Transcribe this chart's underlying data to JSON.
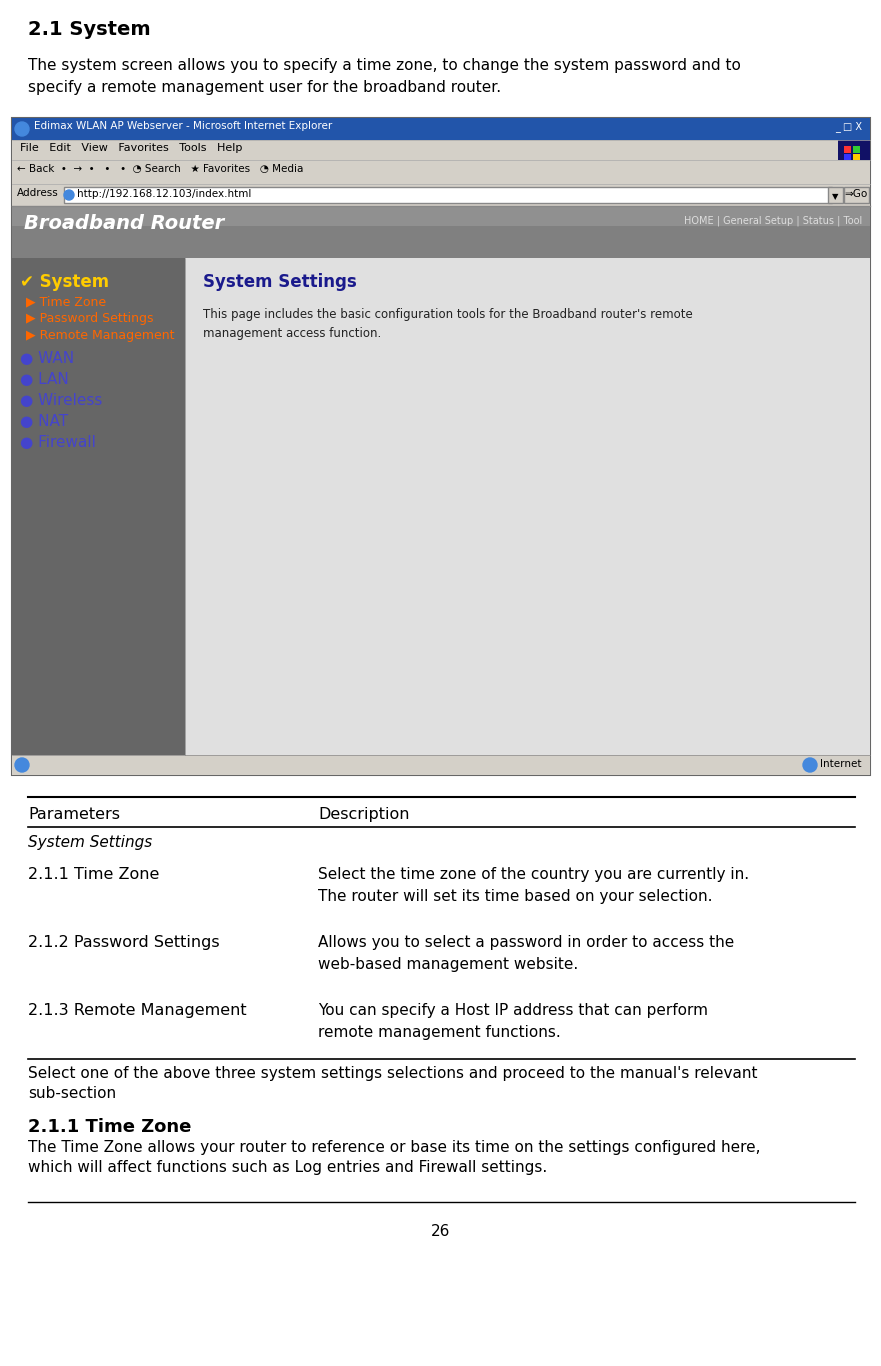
{
  "title": "2.1 System",
  "intro_text": "The system screen allows you to specify a time zone, to change the system password and to\nspecify a remote management user for the broadband router.",
  "browser_title": "Edimax WLAN AP Webserver - Microsoft Internet Explorer",
  "browser_url": "http://192.168.12.103/index.html",
  "browser_menu": "File   Edit   View   Favorites   Tools   Help",
  "router_header": "Broadband Router",
  "router_header_right": "HOME | General Setup | Status | Tool",
  "content_title": "System Settings",
  "content_body": "This page includes the basic configuration tools for the Broadband router's remote\nmanagement access function.",
  "table_header_left": "Parameters",
  "table_header_right": "Description",
  "table_section": "System Settings",
  "table_rows": [
    {
      "param": "2.1.1 Time Zone",
      "desc": "Select the time zone of the country you are currently in.\nThe router will set its time based on your selection."
    },
    {
      "param": "2.1.2 Password Settings",
      "desc": "Allows you to select a password in order to access the\nweb-based management website."
    },
    {
      "param": "2.1.3 Remote Management",
      "desc": "You can specify a Host IP address that can perform\nremote management functions."
    }
  ],
  "select_note": "Select one of the above three system settings selections and proceed to the manual's relevant\nsub-section",
  "subsection_title": "2.1.1 Time Zone",
  "subsection_body": "The Time Zone allows your router to reference or base its time on the settings configured here,\nwhich will affect functions such as Log entries and Firewall settings.",
  "page_number": "26",
  "bg_color": "#ffffff",
  "text_color": "#000000",
  "browser_bg": "#d4d0c8",
  "browser_title_bg": "#2255aa",
  "router_header_bg": "#808080",
  "nav_bg": "#666666",
  "content_bg": "#e8e8e8",
  "nav_text_color_system": "#ffcc00",
  "nav_text_color_sub": "#ff6600",
  "nav_text_color_links": "#3333cc",
  "content_title_color": "#1a1a8c"
}
